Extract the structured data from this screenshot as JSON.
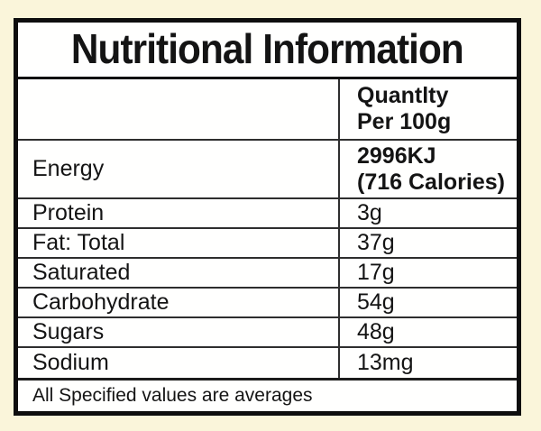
{
  "label": {
    "title": "Nutritional Information",
    "header": {
      "label_cell": "",
      "quantity_line1": "Quantlty",
      "quantity_line2": "Per 100g"
    },
    "energy": {
      "name": "Energy",
      "value_line1": "2996KJ",
      "value_line2": "(716 Calories)"
    },
    "rows": [
      {
        "name": "Protein",
        "value": "3g"
      },
      {
        "name": "Fat: Total",
        "value": "37g"
      },
      {
        "name": "Saturated",
        "value": "17g"
      },
      {
        "name": "Carbohydrate",
        "value": "54g"
      },
      {
        "name": "Sugars",
        "value": "48g"
      },
      {
        "name": "Sodium",
        "value": "13mg"
      }
    ],
    "footer": "All Specified values are averages",
    "colors": {
      "page_background": "#faf5da",
      "paper": "#fffffe",
      "outer_border": "#0e0e0e",
      "grid_line": "#2e2e2e",
      "text": "#141414"
    }
  }
}
